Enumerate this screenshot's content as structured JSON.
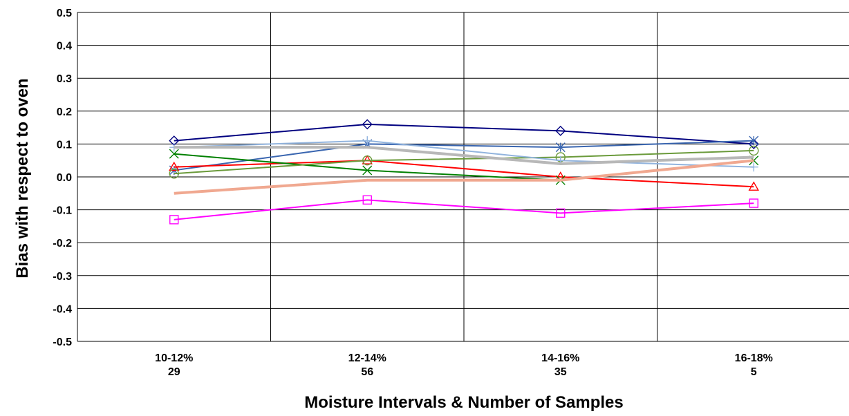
{
  "chart_data": {
    "type": "line",
    "categories": [
      [
        "10-12%",
        "29"
      ],
      [
        "12-14%",
        "56"
      ],
      [
        "14-16%",
        "35"
      ],
      [
        "16-18%",
        "5"
      ]
    ],
    "xlabel": "Moisture Intervals & Number of Samples",
    "ylabel": "Bias with respect to oven",
    "ylim": [
      -0.5,
      0.5
    ],
    "yticks": [
      -0.5,
      -0.4,
      -0.3,
      -0.2,
      -0.1,
      0.0,
      0.1,
      0.2,
      0.3,
      0.4,
      0.5
    ],
    "grid": true,
    "legend": "none",
    "series": [
      {
        "color": "#000080",
        "marker": "diamond",
        "values": [
          0.11,
          0.16,
          0.14,
          0.1
        ]
      },
      {
        "color": "#3A66B0",
        "marker": "asterisk",
        "values": [
          0.02,
          0.1,
          0.09,
          0.11
        ]
      },
      {
        "color": "#FF00FF",
        "marker": "square",
        "values": [
          -0.13,
          -0.07,
          -0.11,
          -0.08
        ]
      },
      {
        "color": "#FF0000",
        "marker": "triangle",
        "values": [
          0.03,
          0.05,
          0.0,
          -0.03
        ]
      },
      {
        "color": "#008000",
        "marker": "x",
        "values": [
          0.07,
          0.02,
          -0.01,
          0.05
        ]
      },
      {
        "color": "#6A9A3A",
        "marker": "circle",
        "values": [
          0.01,
          0.05,
          0.06,
          0.08
        ]
      },
      {
        "color": "#92B4DE",
        "marker": "plus",
        "values": [
          0.09,
          0.11,
          0.05,
          0.03
        ]
      },
      {
        "color": "#B8B8B8",
        "marker": "none",
        "width": 4,
        "values": [
          0.09,
          0.09,
          0.04,
          0.06
        ]
      },
      {
        "color": "#F0A890",
        "marker": "none",
        "width": 4,
        "values": [
          -0.05,
          -0.01,
          -0.01,
          0.05
        ]
      }
    ]
  }
}
